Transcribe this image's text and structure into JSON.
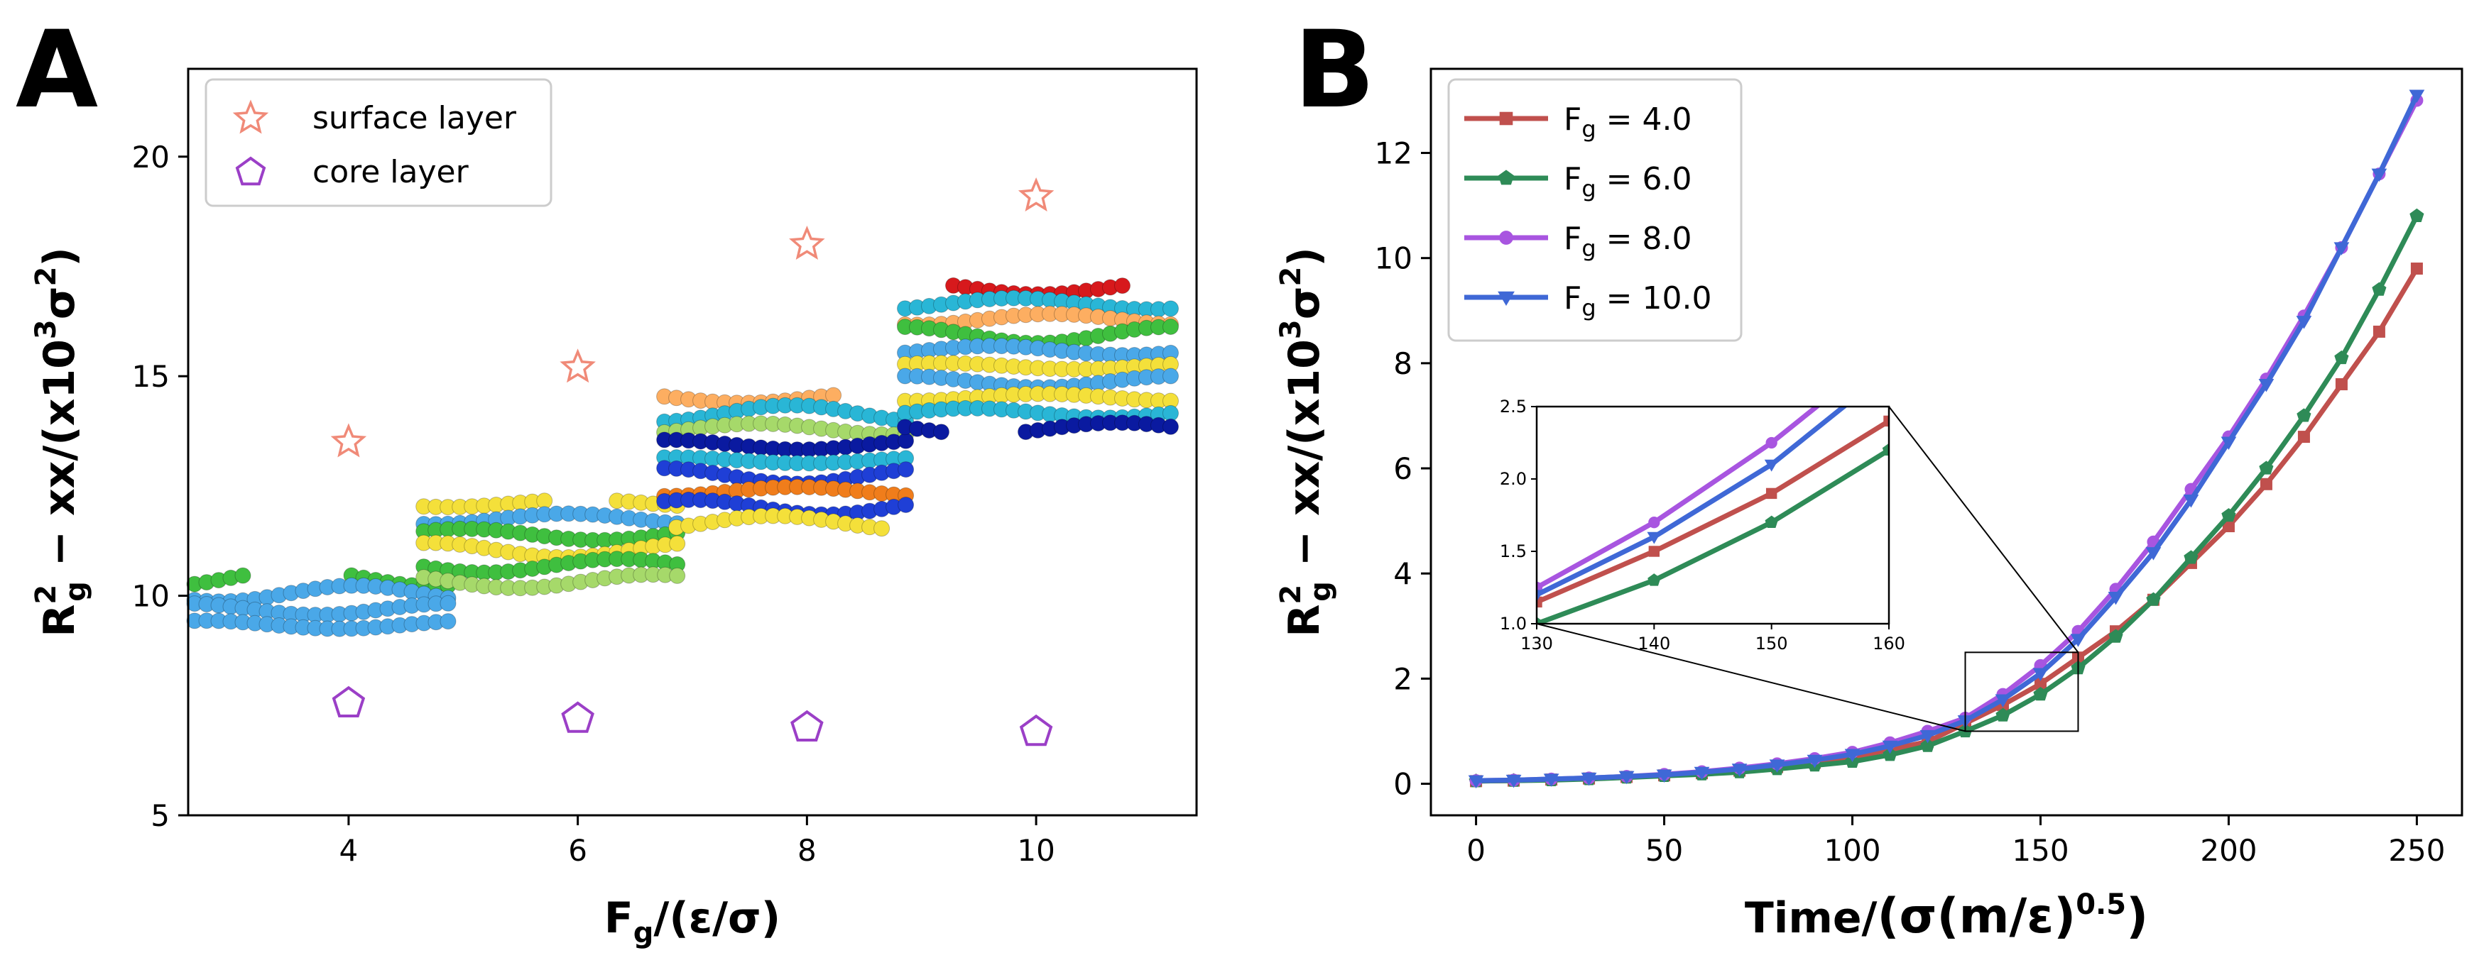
{
  "chart_data": [
    {
      "type": "scatter",
      "panel_label": "A",
      "xlabel_main": "F",
      "xlabel_sub": "g",
      "xlabel_unit": "/(ε/σ)",
      "ylabel_a": "R",
      "ylabel_sup": "2",
      "ylabel_sub": "g",
      "ylabel_b": " − xx/(x10",
      "ylabel_sup2": "3",
      "ylabel_c": "σ",
      "ylabel_sup3": "2",
      "ylabel_d": ")",
      "xlim": [
        2.6,
        11.4
      ],
      "ylim": [
        5,
        22
      ],
      "xticks": [
        "4",
        "6",
        "8",
        "10"
      ],
      "yticks": [
        "5",
        "10",
        "15",
        "20"
      ],
      "legend_position": "top-left",
      "series": [
        {
          "name": "surface layer",
          "marker": "star",
          "color": "#f08a78",
          "x": [
            4,
            6,
            8,
            10
          ],
          "y": [
            13.5,
            15.2,
            18.0,
            19.1
          ]
        },
        {
          "name": "core layer",
          "marker": "pentagon",
          "color": "#9b3fc7",
          "x": [
            4,
            6,
            8,
            10
          ],
          "y": [
            7.55,
            7.2,
            7.0,
            6.9
          ]
        }
      ]
    },
    {
      "type": "line",
      "panel_label": "B",
      "xlabel_a": "Time/",
      "xlabel_b": "(σ(m/ε)",
      "xlabel_sup": "0.5",
      "xlabel_c": ")",
      "ylabel_a": "R",
      "ylabel_sup": "2",
      "ylabel_sub": "g",
      "ylabel_b": " − xx/(x10",
      "ylabel_sup2": "3",
      "ylabel_c": "σ",
      "ylabel_sup3": "2",
      "ylabel_d": ")",
      "xlim": [
        -12,
        262
      ],
      "ylim": [
        -0.6,
        13.6
      ],
      "xticks": [
        "0",
        "50",
        "100",
        "150",
        "200",
        "250"
      ],
      "yticks": [
        "0",
        "2",
        "4",
        "6",
        "8",
        "10",
        "12"
      ],
      "legend_position": "top-left",
      "x": [
        0,
        10,
        20,
        30,
        40,
        50,
        60,
        70,
        80,
        90,
        100,
        110,
        120,
        130,
        140,
        150,
        160,
        170,
        180,
        190,
        200,
        210,
        220,
        230,
        240,
        250
      ],
      "series": [
        {
          "name": "F",
          "sub": "g",
          "value": " = 4.0",
          "color": "#c0504d",
          "marker": "square",
          "values": [
            0.05,
            0.06,
            0.08,
            0.1,
            0.13,
            0.16,
            0.2,
            0.25,
            0.32,
            0.4,
            0.5,
            0.65,
            0.8,
            1.15,
            1.5,
            1.9,
            2.4,
            2.9,
            3.5,
            4.2,
            4.9,
            5.7,
            6.6,
            7.6,
            8.6,
            9.8
          ]
        },
        {
          "name": "F",
          "sub": "g",
          "value": " = 6.0",
          "color": "#2e8b57",
          "marker": "pentagon",
          "values": [
            0.05,
            0.06,
            0.07,
            0.09,
            0.12,
            0.15,
            0.18,
            0.22,
            0.28,
            0.35,
            0.42,
            0.55,
            0.72,
            1.0,
            1.3,
            1.7,
            2.2,
            2.8,
            3.5,
            4.3,
            5.1,
            6.0,
            7.0,
            8.1,
            9.4,
            10.8
          ]
        },
        {
          "name": "F",
          "sub": "g",
          "value": " = 8.0",
          "color": "#a855e0",
          "marker": "circle",
          "values": [
            0.06,
            0.07,
            0.09,
            0.11,
            0.14,
            0.18,
            0.23,
            0.3,
            0.38,
            0.48,
            0.6,
            0.78,
            1.0,
            1.25,
            1.7,
            2.25,
            2.9,
            3.7,
            4.6,
            5.6,
            6.6,
            7.7,
            8.9,
            10.2,
            11.6,
            13.0
          ]
        },
        {
          "name": "F",
          "sub": "g",
          "value": " = 10.0",
          "color": "#3f68d6",
          "marker": "triangle-down",
          "values": [
            0.06,
            0.07,
            0.09,
            0.11,
            0.14,
            0.17,
            0.22,
            0.28,
            0.36,
            0.45,
            0.56,
            0.72,
            0.92,
            1.2,
            1.6,
            2.1,
            2.75,
            3.55,
            4.4,
            5.4,
            6.5,
            7.6,
            8.8,
            10.2,
            11.6,
            13.1
          ]
        }
      ],
      "inset": {
        "xlim": [
          130,
          160
        ],
        "ylim": [
          1.0,
          2.5
        ],
        "xticks": [
          "130",
          "140",
          "150",
          "160"
        ],
        "yticks": [
          "1.0",
          "1.5",
          "2.0",
          "2.5"
        ]
      }
    }
  ]
}
